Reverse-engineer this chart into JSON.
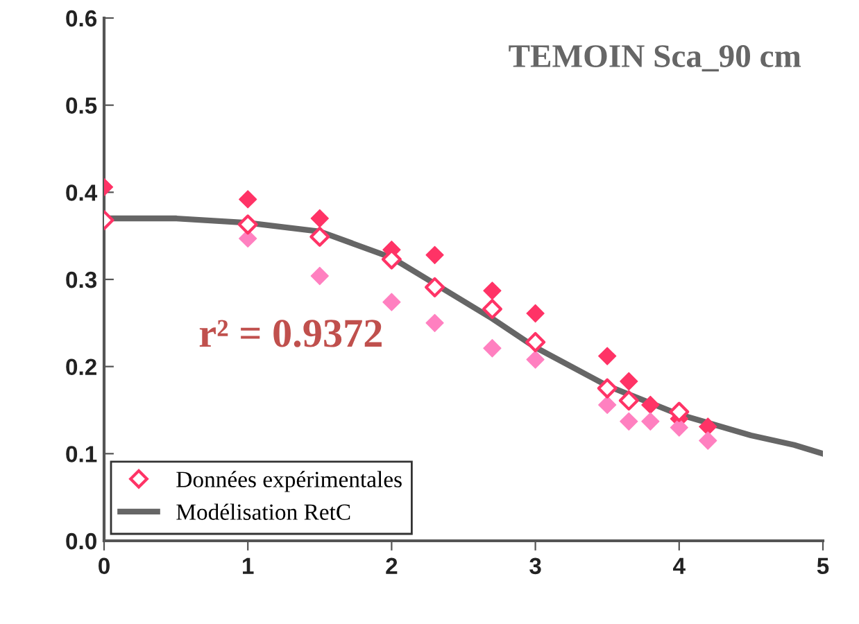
{
  "chart_data": {
    "type": "scatter",
    "title": "TEMOIN Sca_90 cm",
    "xlim": [
      0,
      5
    ],
    "xticks": [
      0,
      1,
      2,
      3,
      4,
      5
    ],
    "ylim": [
      0,
      0.6
    ],
    "yticks": [
      {
        "value": 0,
        "label": "0.0"
      },
      {
        "value": 0.1,
        "label": "0.1"
      },
      {
        "value": 0.2,
        "label": "0.2"
      },
      {
        "value": 0.3,
        "label": "0.3"
      },
      {
        "value": 0.4,
        "label": "0.4"
      },
      {
        "value": 0.5,
        "label": "0.5"
      },
      {
        "value": 0.6,
        "label": "0.6"
      }
    ],
    "grid": false,
    "legend": "bottom left",
    "marker": "diamond",
    "annotations": [
      "r² = 0.9372"
    ],
    "series": [
      {
        "color": "#ff3366",
        "x": [
          0,
          1,
          1.5,
          2,
          2.3,
          2.7,
          3,
          3.5,
          3.65,
          3.8,
          4,
          4.2
        ],
        "values": [
          0.406,
          0.392,
          0.37,
          0.334,
          0.328,
          0.287,
          0.261,
          0.212,
          0.183,
          0.156,
          0.14,
          0.131
        ]
      },
      {
        "color": "#ff80c0",
        "x": [
          1,
          1.5,
          2,
          2.3,
          2.7,
          3,
          3.5,
          3.65,
          3.8,
          4,
          4.2
        ],
        "values": [
          0.347,
          0.304,
          0.274,
          0.25,
          0.221,
          0.208,
          0.156,
          0.137,
          0.137,
          0.13,
          0.115
        ]
      },
      {
        "name": "Données expérimentales",
        "color": "#ff3366",
        "x": [
          0,
          1,
          1.5,
          2,
          2.3,
          2.7,
          3,
          3.5,
          3.65,
          4
        ],
        "values": [
          0.368,
          0.363,
          0.349,
          0.323,
          0.291,
          0.266,
          0.228,
          0.175,
          0.161,
          0.148
        ]
      },
      {
        "type": "line",
        "name": "Modélisation RetC",
        "color": "#666666",
        "marker": "none",
        "line_style": "solid",
        "x": [
          0,
          0.5,
          1,
          1.5,
          2,
          2.3,
          2.7,
          3,
          3.5,
          4,
          4.5,
          4.8,
          5
        ],
        "values": [
          0.37,
          0.37,
          0.365,
          0.355,
          0.325,
          0.295,
          0.255,
          0.222,
          0.178,
          0.145,
          0.121,
          0.11,
          0.1
        ]
      }
    ]
  }
}
